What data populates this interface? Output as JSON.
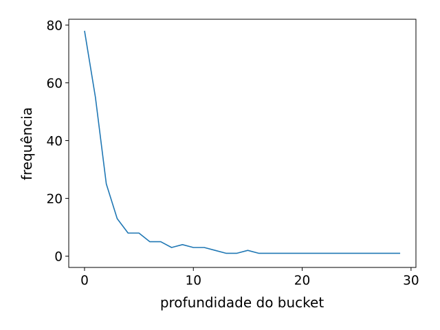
{
  "chart_data": {
    "type": "line",
    "title": "",
    "xlabel": "profundidade do bucket",
    "ylabel": "frequência",
    "xlim": [
      -1.45,
      30.45
    ],
    "ylim": [
      -3.9,
      82
    ],
    "xticks": [
      0,
      10,
      20,
      30
    ],
    "yticks": [
      0,
      20,
      40,
      60,
      80
    ],
    "grid": false,
    "line_color": "#1f77b4",
    "series": [
      {
        "x": [
          0,
          1,
          2,
          3,
          4,
          5,
          6,
          7,
          8,
          9,
          10,
          11,
          12,
          13,
          14,
          15,
          16,
          17,
          18,
          19,
          20,
          21,
          22,
          23,
          24,
          25,
          26,
          27,
          28,
          29
        ],
        "values": [
          78,
          55,
          25,
          13,
          8,
          8,
          5,
          5,
          3,
          4,
          3,
          3,
          2,
          1,
          1,
          2,
          1,
          1,
          1,
          1,
          1,
          1,
          1,
          1,
          1,
          1,
          1,
          1,
          1,
          1
        ]
      }
    ]
  }
}
